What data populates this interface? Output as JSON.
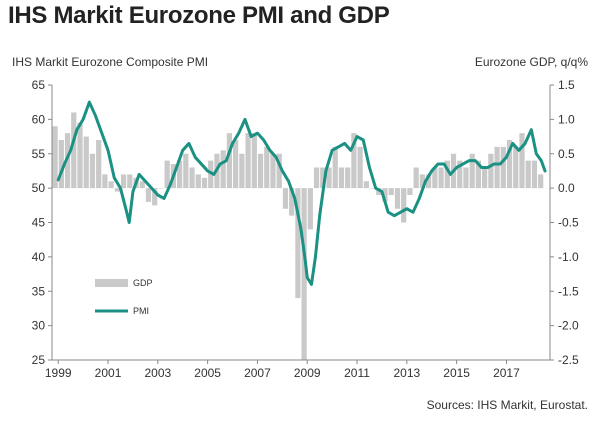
{
  "page": {
    "title": "IHS Markit Eurozone PMI and GDP",
    "left_axis_label": "IHS Markit Eurozone Composite PMI",
    "right_axis_label": "Eurozone GDP, q/q%",
    "source": "Sources: IHS Markit, Eurostat."
  },
  "colors": {
    "pmi_line": "#1a9183",
    "gdp_bars": "#c9c9c9",
    "axis": "#888888"
  },
  "chart_data": {
    "type": "bar+line",
    "title": "IHS Markit Eurozone PMI and GDP",
    "x_range": [
      1998.75,
      2018.75
    ],
    "x_ticks": [
      {
        "value": 1999,
        "label": "1999"
      },
      {
        "value": 2001,
        "label": "2001"
      },
      {
        "value": 2003,
        "label": "2003"
      },
      {
        "value": 2005,
        "label": "2005"
      },
      {
        "value": 2007,
        "label": "2007"
      },
      {
        "value": 2009,
        "label": "2009"
      },
      {
        "value": 2011,
        "label": "2011"
      },
      {
        "value": 2013,
        "label": "2013"
      },
      {
        "value": 2015,
        "label": "2015"
      },
      {
        "value": 2017,
        "label": "2017"
      }
    ],
    "left_axis": {
      "label": "IHS Markit Eurozone Composite PMI",
      "range": [
        25,
        65
      ],
      "ticks": [
        {
          "value": 65,
          "label": "65"
        },
        {
          "value": 60,
          "label": "60"
        },
        {
          "value": 55,
          "label": "55"
        },
        {
          "value": 50,
          "label": "50"
        },
        {
          "value": 45,
          "label": "45"
        },
        {
          "value": 40,
          "label": "40"
        },
        {
          "value": 35,
          "label": "35"
        },
        {
          "value": 30,
          "label": "30"
        },
        {
          "value": 25,
          "label": "25"
        }
      ]
    },
    "right_axis": {
      "label": "Eurozone GDP, q/q%",
      "range": [
        -2.5,
        1.5
      ],
      "ticks": [
        {
          "value": 1.5,
          "label": "1.5"
        },
        {
          "value": 1.0,
          "label": "1.0"
        },
        {
          "value": 0.5,
          "label": "0.5"
        },
        {
          "value": 0.0,
          "label": "0.0"
        },
        {
          "value": -0.5,
          "label": "-0.5"
        },
        {
          "value": -1.0,
          "label": "-1.0"
        },
        {
          "value": -1.5,
          "label": "-1.5"
        },
        {
          "value": -2.0,
          "label": "-2.0"
        },
        {
          "value": -2.5,
          "label": "-2.5"
        }
      ]
    },
    "legend": [
      {
        "name": "GDP",
        "style": "bar"
      },
      {
        "name": "PMI",
        "style": "line"
      }
    ],
    "legend_position": "bottom-left",
    "series": [
      {
        "name": "GDP",
        "axis": "right",
        "type": "bar",
        "x": [
          1998.875,
          1999.125,
          1999.375,
          1999.625,
          1999.875,
          2000.125,
          2000.375,
          2000.625,
          2000.875,
          2001.125,
          2001.375,
          2001.625,
          2001.875,
          2002.125,
          2002.375,
          2002.625,
          2002.875,
          2003.125,
          2003.375,
          2003.625,
          2003.875,
          2004.125,
          2004.375,
          2004.625,
          2004.875,
          2005.125,
          2005.375,
          2005.625,
          2005.875,
          2006.125,
          2006.375,
          2006.625,
          2006.875,
          2007.125,
          2007.375,
          2007.625,
          2007.875,
          2008.125,
          2008.375,
          2008.625,
          2008.875,
          2009.125,
          2009.375,
          2009.625,
          2009.875,
          2010.125,
          2010.375,
          2010.625,
          2010.875,
          2011.125,
          2011.375,
          2011.625,
          2011.875,
          2012.125,
          2012.375,
          2012.625,
          2012.875,
          2013.125,
          2013.375,
          2013.625,
          2013.875,
          2014.125,
          2014.375,
          2014.625,
          2014.875,
          2015.125,
          2015.375,
          2015.625,
          2015.875,
          2016.125,
          2016.375,
          2016.625,
          2016.875,
          2017.125,
          2017.375,
          2017.625,
          2017.875,
          2018.125,
          2018.375
        ],
        "values": [
          0.9,
          0.7,
          0.8,
          1.1,
          0.95,
          0.75,
          0.5,
          0.7,
          0.2,
          0.1,
          -0.05,
          0.2,
          0.2,
          0.15,
          0.1,
          -0.2,
          -0.25,
          0.0,
          0.4,
          0.35,
          0.4,
          0.5,
          0.3,
          0.2,
          0.15,
          0.4,
          0.5,
          0.55,
          0.8,
          0.7,
          0.5,
          0.8,
          0.8,
          0.5,
          0.6,
          0.5,
          0.5,
          -0.3,
          -0.4,
          -1.6,
          -2.5,
          -0.6,
          0.3,
          0.3,
          0.3,
          0.6,
          0.3,
          0.3,
          0.8,
          0.6,
          0.1,
          0.0,
          -0.1,
          -0.2,
          -0.1,
          -0.3,
          -0.5,
          -0.1,
          0.3,
          0.2,
          0.2,
          0.3,
          0.3,
          0.4,
          0.5,
          0.4,
          0.3,
          0.5,
          0.4,
          0.3,
          0.5,
          0.6,
          0.6,
          0.7,
          0.6,
          0.8,
          0.4,
          0.4,
          0.2
        ]
      },
      {
        "name": "PMI",
        "axis": "left",
        "type": "line",
        "x": [
          1999.0,
          1999.25,
          1999.5,
          1999.75,
          2000.0,
          2000.25,
          2000.5,
          2000.75,
          2001.0,
          2001.25,
          2001.5,
          2001.75,
          2001.85,
          2002.0,
          2002.25,
          2002.5,
          2002.75,
          2003.0,
          2003.25,
          2003.5,
          2003.75,
          2004.0,
          2004.25,
          2004.5,
          2004.75,
          2005.0,
          2005.25,
          2005.5,
          2005.75,
          2006.0,
          2006.25,
          2006.5,
          2006.75,
          2007.0,
          2007.25,
          2007.5,
          2007.75,
          2008.0,
          2008.25,
          2008.5,
          2008.75,
          2008.92,
          2009.0,
          2009.17,
          2009.33,
          2009.5,
          2009.75,
          2010.0,
          2010.25,
          2010.5,
          2010.75,
          2011.0,
          2011.25,
          2011.5,
          2011.75,
          2012.0,
          2012.25,
          2012.5,
          2012.75,
          2013.0,
          2013.25,
          2013.5,
          2013.75,
          2014.0,
          2014.25,
          2014.5,
          2014.75,
          2015.0,
          2015.25,
          2015.5,
          2015.75,
          2016.0,
          2016.25,
          2016.5,
          2016.75,
          2017.0,
          2017.25,
          2017.5,
          2017.75,
          2018.0,
          2018.2,
          2018.4,
          2018.55
        ],
        "values": [
          51.2,
          53.5,
          55.5,
          58.5,
          60.0,
          62.5,
          60.5,
          58.0,
          55.5,
          51.5,
          50.0,
          46.5,
          45.0,
          49.5,
          52.0,
          51.0,
          50.0,
          49.0,
          48.5,
          50.5,
          53.0,
          55.5,
          56.5,
          54.5,
          53.5,
          52.5,
          52.0,
          53.5,
          54.0,
          56.5,
          58.0,
          60.0,
          57.5,
          58.0,
          57.0,
          55.5,
          54.5,
          52.5,
          51.0,
          48.5,
          44.0,
          39.5,
          37.0,
          36.0,
          40.0,
          46.0,
          52.5,
          55.5,
          56.0,
          56.5,
          55.5,
          57.5,
          57.0,
          53.0,
          50.0,
          49.5,
          46.5,
          46.0,
          46.5,
          47.0,
          46.5,
          48.5,
          51.0,
          52.5,
          53.5,
          53.5,
          52.0,
          53.0,
          53.5,
          54.0,
          54.0,
          53.0,
          53.0,
          53.5,
          53.5,
          54.5,
          56.5,
          55.5,
          56.5,
          58.5,
          55.0,
          54.0,
          52.5
        ]
      }
    ]
  }
}
